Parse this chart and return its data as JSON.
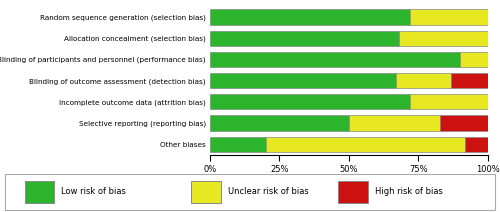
{
  "categories": [
    "Random sequence generation (selection bias)",
    "Allocation concealment (selection bias)",
    "Blinding of participants and personnel (performance bias)",
    "Blinding of outcome assessment (detection bias)",
    "Incomplete outcome data (attrition bias)",
    "Selective reporting (reporting bias)",
    "Other biases"
  ],
  "low": [
    72,
    68,
    90,
    67,
    72,
    50,
    20
  ],
  "unclear": [
    28,
    32,
    10,
    20,
    28,
    33,
    72
  ],
  "high": [
    0,
    0,
    0,
    13,
    0,
    17,
    8
  ],
  "colors": {
    "low": "#2db42d",
    "unclear": "#e8e822",
    "high": "#cc1111"
  },
  "legend_labels": [
    "Low risk of bias",
    "Unclear risk of bias",
    "High risk of bias"
  ],
  "background_color": "#ffffff",
  "bar_edge_color": "#888888",
  "xlim": [
    0,
    100
  ],
  "xtick_labels": [
    "0%",
    "25%",
    "50%",
    "75%",
    "100%"
  ],
  "xtick_values": [
    0,
    25,
    50,
    75,
    100
  ]
}
